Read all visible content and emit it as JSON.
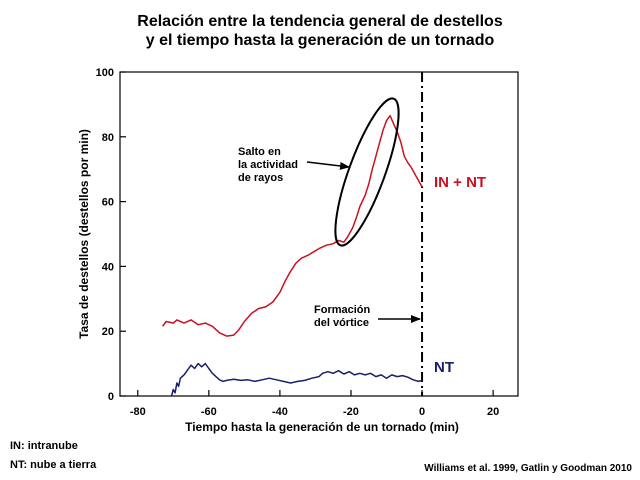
{
  "chart_data": {
    "type": "line",
    "title_lines": [
      "Relación entre la tendencia general de destellos",
      "y el tiempo hasta la generación de un tornado"
    ],
    "xlabel": "Tiempo hasta la generación de un tornado (min)",
    "ylabel": "Tasa de destellos (destellos por min)",
    "xlim": [
      -85,
      27
    ],
    "ylim": [
      0,
      100
    ],
    "x_ticks": [
      -80,
      -60,
      -40,
      -20,
      0,
      20
    ],
    "y_ticks": [
      0,
      20,
      40,
      60,
      80,
      100
    ],
    "vertical_marker_x": 0,
    "series": [
      {
        "name": "IN + NT",
        "color": "#cc1020",
        "points": [
          [
            -73,
            21.5
          ],
          [
            -72,
            23
          ],
          [
            -70,
            22.5
          ],
          [
            -69,
            23.5
          ],
          [
            -67,
            22.5
          ],
          [
            -65,
            23.5
          ],
          [
            -63,
            22
          ],
          [
            -61,
            22.5
          ],
          [
            -59,
            21.5
          ],
          [
            -57,
            19.5
          ],
          [
            -55,
            18.5
          ],
          [
            -53,
            18.8
          ],
          [
            -51.5,
            20.5
          ],
          [
            -50,
            23
          ],
          [
            -48,
            25.5
          ],
          [
            -46,
            27
          ],
          [
            -44,
            27.5
          ],
          [
            -42,
            29
          ],
          [
            -40,
            32
          ],
          [
            -38.5,
            35.5
          ],
          [
            -37,
            38.5
          ],
          [
            -35.5,
            41
          ],
          [
            -34,
            42.5
          ],
          [
            -32,
            43.5
          ],
          [
            -30.5,
            44.5
          ],
          [
            -29,
            45.5
          ],
          [
            -27,
            46.5
          ],
          [
            -25,
            47
          ],
          [
            -23.5,
            48
          ],
          [
            -22,
            47.5
          ],
          [
            -21,
            49
          ],
          [
            -19.5,
            52
          ],
          [
            -18.5,
            55
          ],
          [
            -17.5,
            58.5
          ],
          [
            -16,
            62
          ],
          [
            -15,
            65.5
          ],
          [
            -14,
            70
          ],
          [
            -13,
            74
          ],
          [
            -12,
            78
          ],
          [
            -11,
            82
          ],
          [
            -10,
            85
          ],
          [
            -9,
            86.5
          ],
          [
            -8,
            84
          ],
          [
            -7,
            81.5
          ],
          [
            -6,
            78.5
          ],
          [
            -5,
            74
          ],
          [
            -4,
            72
          ],
          [
            -3,
            70.5
          ],
          [
            -2,
            68.5
          ],
          [
            -1,
            66.5
          ],
          [
            0,
            64.5
          ]
        ]
      },
      {
        "name": "NT",
        "color": "#1a1f6b",
        "points": [
          [
            -70.5,
            0
          ],
          [
            -70,
            2
          ],
          [
            -69.5,
            1
          ],
          [
            -69,
            4
          ],
          [
            -68.5,
            3
          ],
          [
            -68,
            5.5
          ],
          [
            -67,
            6.5
          ],
          [
            -66,
            8
          ],
          [
            -65,
            9.5
          ],
          [
            -64,
            8.5
          ],
          [
            -63,
            10
          ],
          [
            -62,
            9
          ],
          [
            -61,
            10
          ],
          [
            -60,
            8.5
          ],
          [
            -59,
            7
          ],
          [
            -58,
            6
          ],
          [
            -57,
            5
          ],
          [
            -56,
            4.5
          ],
          [
            -55,
            4.8
          ],
          [
            -53,
            5.2
          ],
          [
            -51,
            4.8
          ],
          [
            -49,
            5
          ],
          [
            -47,
            4.5
          ],
          [
            -45,
            5
          ],
          [
            -43,
            5.5
          ],
          [
            -41,
            5
          ],
          [
            -39,
            4.5
          ],
          [
            -37,
            4
          ],
          [
            -35,
            4.5
          ],
          [
            -33,
            4.8
          ],
          [
            -31,
            5.5
          ],
          [
            -29,
            6
          ],
          [
            -28,
            7
          ],
          [
            -26.5,
            7.5
          ],
          [
            -25,
            7
          ],
          [
            -23.5,
            7.8
          ],
          [
            -22,
            6.8
          ],
          [
            -20.5,
            7.5
          ],
          [
            -19,
            6.5
          ],
          [
            -17.5,
            7
          ],
          [
            -16,
            6.5
          ],
          [
            -14.5,
            7
          ],
          [
            -13,
            6
          ],
          [
            -11.5,
            6.5
          ],
          [
            -10,
            5.5
          ],
          [
            -8.5,
            6.5
          ],
          [
            -7,
            6
          ],
          [
            -5.5,
            6.3
          ],
          [
            -4,
            5.8
          ],
          [
            -2.5,
            5
          ],
          [
            -1,
            4.5
          ],
          [
            0,
            4.8
          ]
        ]
      }
    ],
    "annotations": {
      "jump": [
        "Salto en",
        "la actividad",
        "de rayos"
      ],
      "vortex": [
        "Formación",
        "del vórtice"
      ]
    }
  },
  "legend_notes": [
    "IN: intranube",
    "NT: nube a tierra"
  ],
  "source": "Williams et al. 1999, Gatlin y Goodman 2010"
}
